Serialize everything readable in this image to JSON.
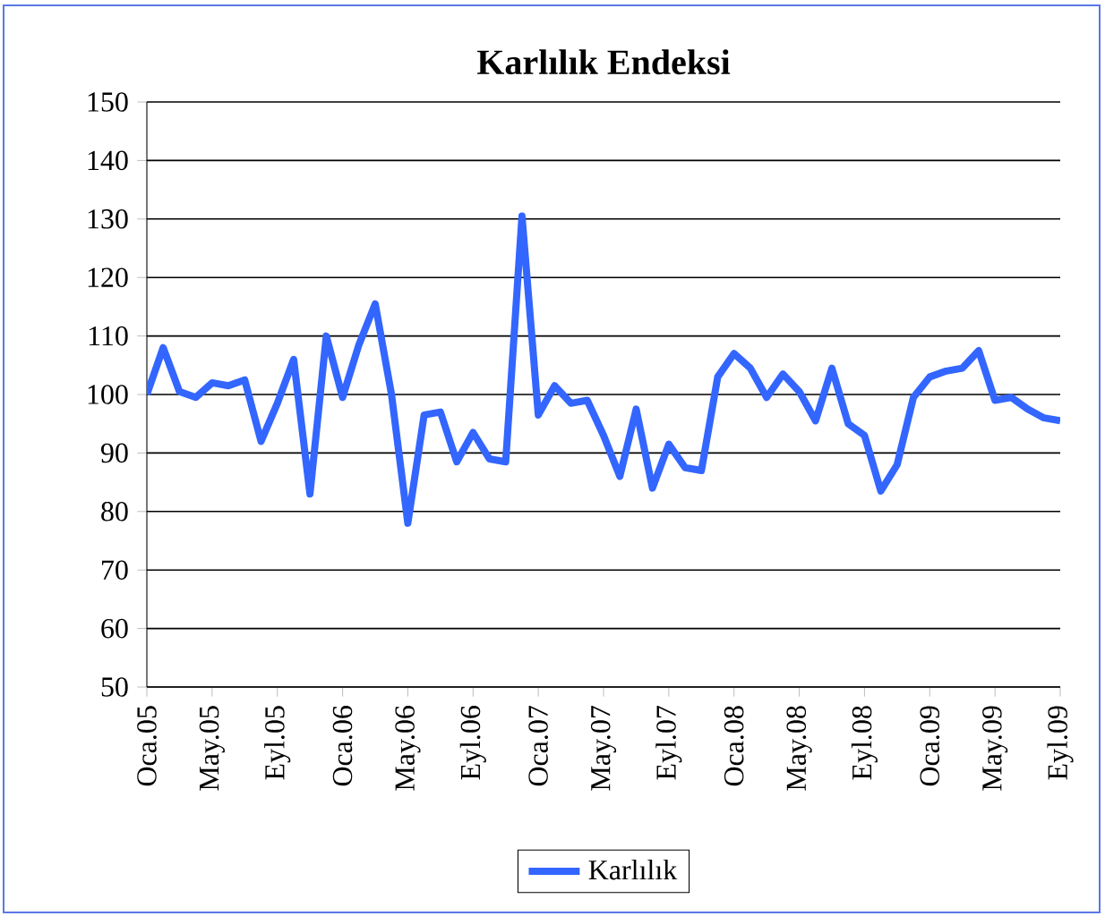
{
  "chart_data": {
    "type": "line",
    "title": "Karlılık Endeksi",
    "categories": [
      "Oca.05",
      null,
      null,
      null,
      "May.05",
      null,
      null,
      null,
      "Eyl.05",
      null,
      null,
      null,
      "Oca.06",
      null,
      null,
      null,
      "May.06",
      null,
      null,
      null,
      "Eyl.06",
      null,
      null,
      null,
      "Oca.07",
      null,
      null,
      null,
      "May.07",
      null,
      null,
      null,
      "Eyl.07",
      null,
      null,
      null,
      "Oca.08",
      null,
      null,
      null,
      "May.08",
      null,
      null,
      null,
      "Eyl.08",
      null,
      null,
      null,
      "Oca.09",
      null,
      null,
      null,
      "May.09",
      null,
      null,
      null,
      "Eyl.09"
    ],
    "series": [
      {
        "name": "Karlılık",
        "color": "#3366ff",
        "values": [
          100,
          108,
          100.5,
          99.5,
          102,
          101.5,
          102.5,
          92,
          98.5,
          106,
          83,
          110,
          99.5,
          108.5,
          115.5,
          100,
          78,
          96.5,
          97,
          88.5,
          93.5,
          89,
          88.5,
          130.5,
          96.5,
          101.5,
          98.5,
          99,
          93,
          86,
          97.5,
          84,
          91.5,
          87.5,
          87,
          103,
          107,
          104.5,
          99.5,
          103.5,
          100.5,
          95.5,
          104.5,
          95,
          93,
          83.5,
          88,
          99.5,
          103,
          104,
          104.5,
          107.5,
          99,
          99.5,
          97.5,
          96,
          95.5
        ]
      }
    ],
    "ylim": [
      50,
      150
    ],
    "yticks": [
      50,
      60,
      70,
      80,
      90,
      100,
      110,
      120,
      130,
      140,
      150
    ],
    "grid": "y",
    "legend": "bottom",
    "marker": "none",
    "line_style": "solid"
  }
}
